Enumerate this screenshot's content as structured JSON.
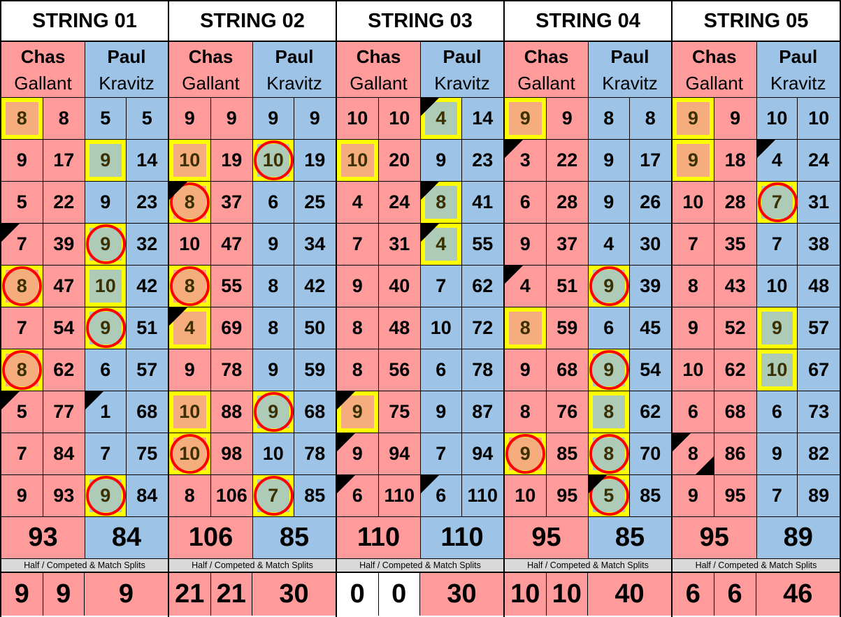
{
  "colors": {
    "chas": "#ff9b9b",
    "paul": "#9dc3e6",
    "highlight": "#ffff00",
    "circle": "#ff0000",
    "chas_fill": "#f6ad7e",
    "paul_fill": "#aecbb8",
    "label_bg": "#d9d9d9"
  },
  "players": {
    "chas": {
      "first": "Chas",
      "last": "Gallant"
    },
    "paul": {
      "first": "Paul",
      "last": "Kravitz"
    }
  },
  "split_label": "Half / Competed & Match Splits",
  "mark_legend": {
    "y": "yellow-highlight",
    "c": "red-circle",
    "t": "black-corner-triangle",
    "b": "bottom-right-triangle"
  },
  "strings": [
    {
      "title": "STRING 01",
      "rows": [
        {
          "c": [
            "8",
            "8"
          ],
          "cm": "y",
          "p": [
            "5",
            "5"
          ],
          "pm": ""
        },
        {
          "c": [
            "9",
            "17"
          ],
          "cm": "",
          "p": [
            "9",
            "14"
          ],
          "pm": "y"
        },
        {
          "c": [
            "5",
            "22"
          ],
          "cm": "",
          "p": [
            "9",
            "23"
          ],
          "pm": ""
        },
        {
          "c": [
            "7",
            "39"
          ],
          "cm": "t",
          "p": [
            "9",
            "32"
          ],
          "pm": "yc"
        },
        {
          "c": [
            "8",
            "47"
          ],
          "cm": "yc",
          "p": [
            "10",
            "42"
          ],
          "pm": "y"
        },
        {
          "c": [
            "7",
            "54"
          ],
          "cm": "",
          "p": [
            "9",
            "51"
          ],
          "pm": "yc"
        },
        {
          "c": [
            "8",
            "62"
          ],
          "cm": "yc",
          "p": [
            "6",
            "57"
          ],
          "pm": ""
        },
        {
          "c": [
            "5",
            "77"
          ],
          "cm": "t",
          "p": [
            "1",
            "68"
          ],
          "pm": "t"
        },
        {
          "c": [
            "7",
            "84"
          ],
          "cm": "",
          "p": [
            "7",
            "75"
          ],
          "pm": ""
        },
        {
          "c": [
            "9",
            "93"
          ],
          "cm": "",
          "p": [
            "9",
            "84"
          ],
          "pm": "yc"
        }
      ],
      "totals": [
        "93",
        "84"
      ],
      "splits": [
        "9",
        "9",
        "9"
      ],
      "splits_white": false
    },
    {
      "title": "STRING 02",
      "rows": [
        {
          "c": [
            "9",
            "9"
          ],
          "cm": "",
          "p": [
            "9",
            "9"
          ],
          "pm": ""
        },
        {
          "c": [
            "10",
            "19"
          ],
          "cm": "y",
          "p": [
            "10",
            "19"
          ],
          "pm": "yc"
        },
        {
          "c": [
            "8",
            "37"
          ],
          "cm": "ytc",
          "p": [
            "6",
            "25"
          ],
          "pm": ""
        },
        {
          "c": [
            "10",
            "47"
          ],
          "cm": "",
          "p": [
            "9",
            "34"
          ],
          "pm": ""
        },
        {
          "c": [
            "8",
            "55"
          ],
          "cm": "yc",
          "p": [
            "8",
            "42"
          ],
          "pm": ""
        },
        {
          "c": [
            "4",
            "69"
          ],
          "cm": "yt",
          "p": [
            "8",
            "50"
          ],
          "pm": ""
        },
        {
          "c": [
            "9",
            "78"
          ],
          "cm": "",
          "p": [
            "9",
            "59"
          ],
          "pm": ""
        },
        {
          "c": [
            "10",
            "88"
          ],
          "cm": "y",
          "p": [
            "9",
            "68"
          ],
          "pm": "yc"
        },
        {
          "c": [
            "10",
            "98"
          ],
          "cm": "yc",
          "p": [
            "10",
            "78"
          ],
          "pm": ""
        },
        {
          "c": [
            "8",
            "106"
          ],
          "cm": "",
          "p": [
            "7",
            "85"
          ],
          "pm": "yc"
        }
      ],
      "totals": [
        "106",
        "85"
      ],
      "splits": [
        "21",
        "21",
        "30"
      ],
      "splits_white": false
    },
    {
      "title": "STRING 03",
      "rows": [
        {
          "c": [
            "10",
            "10"
          ],
          "cm": "",
          "p": [
            "4",
            "14"
          ],
          "pm": "yt"
        },
        {
          "c": [
            "10",
            "20"
          ],
          "cm": "y",
          "p": [
            "9",
            "23"
          ],
          "pm": ""
        },
        {
          "c": [
            "4",
            "24"
          ],
          "cm": "",
          "p": [
            "8",
            "41"
          ],
          "pm": "yt"
        },
        {
          "c": [
            "7",
            "31"
          ],
          "cm": "",
          "p": [
            "4",
            "55"
          ],
          "pm": "yt"
        },
        {
          "c": [
            "9",
            "40"
          ],
          "cm": "",
          "p": [
            "7",
            "62"
          ],
          "pm": ""
        },
        {
          "c": [
            "8",
            "48"
          ],
          "cm": "",
          "p": [
            "10",
            "72"
          ],
          "pm": ""
        },
        {
          "c": [
            "8",
            "56"
          ],
          "cm": "",
          "p": [
            "6",
            "78"
          ],
          "pm": ""
        },
        {
          "c": [
            "9",
            "75"
          ],
          "cm": "yt",
          "p": [
            "9",
            "87"
          ],
          "pm": ""
        },
        {
          "c": [
            "9",
            "94"
          ],
          "cm": "t",
          "p": [
            "7",
            "94"
          ],
          "pm": ""
        },
        {
          "c": [
            "6",
            "110"
          ],
          "cm": "t",
          "p": [
            "6",
            "110"
          ],
          "pm": "t"
        }
      ],
      "totals": [
        "110",
        "110"
      ],
      "splits": [
        "0",
        "0",
        "30"
      ],
      "splits_white": true
    },
    {
      "title": "STRING 04",
      "rows": [
        {
          "c": [
            "9",
            "9"
          ],
          "cm": "y",
          "p": [
            "8",
            "8"
          ],
          "pm": ""
        },
        {
          "c": [
            "3",
            "22"
          ],
          "cm": "t",
          "p": [
            "9",
            "17"
          ],
          "pm": ""
        },
        {
          "c": [
            "6",
            "28"
          ],
          "cm": "",
          "p": [
            "9",
            "26"
          ],
          "pm": ""
        },
        {
          "c": [
            "9",
            "37"
          ],
          "cm": "",
          "p": [
            "4",
            "30"
          ],
          "pm": ""
        },
        {
          "c": [
            "4",
            "51"
          ],
          "cm": "t",
          "p": [
            "9",
            "39"
          ],
          "pm": "yc"
        },
        {
          "c": [
            "8",
            "59"
          ],
          "cm": "y",
          "p": [
            "6",
            "45"
          ],
          "pm": ""
        },
        {
          "c": [
            "9",
            "68"
          ],
          "cm": "",
          "p": [
            "9",
            "54"
          ],
          "pm": "yc"
        },
        {
          "c": [
            "8",
            "76"
          ],
          "cm": "",
          "p": [
            "8",
            "62"
          ],
          "pm": "y"
        },
        {
          "c": [
            "9",
            "85"
          ],
          "cm": "yc",
          "p": [
            "8",
            "70"
          ],
          "pm": "yc"
        },
        {
          "c": [
            "10",
            "95"
          ],
          "cm": "",
          "p": [
            "5",
            "85"
          ],
          "pm": "ytc"
        }
      ],
      "totals": [
        "95",
        "85"
      ],
      "splits": [
        "10",
        "10",
        "40"
      ],
      "splits_white": false
    },
    {
      "title": "STRING 05",
      "rows": [
        {
          "c": [
            "9",
            "9"
          ],
          "cm": "y",
          "p": [
            "10",
            "10"
          ],
          "pm": ""
        },
        {
          "c": [
            "9",
            "18"
          ],
          "cm": "y",
          "p": [
            "4",
            "24"
          ],
          "pm": "t"
        },
        {
          "c": [
            "10",
            "28"
          ],
          "cm": "",
          "p": [
            "7",
            "31"
          ],
          "pm": "yc"
        },
        {
          "c": [
            "7",
            "35"
          ],
          "cm": "",
          "p": [
            "7",
            "38"
          ],
          "pm": ""
        },
        {
          "c": [
            "8",
            "43"
          ],
          "cm": "",
          "p": [
            "10",
            "48"
          ],
          "pm": ""
        },
        {
          "c": [
            "9",
            "52"
          ],
          "cm": "",
          "p": [
            "9",
            "57"
          ],
          "pm": "y"
        },
        {
          "c": [
            "10",
            "62"
          ],
          "cm": "",
          "p": [
            "10",
            "67"
          ],
          "pm": "y"
        },
        {
          "c": [
            "6",
            "68"
          ],
          "cm": "",
          "p": [
            "6",
            "73"
          ],
          "pm": ""
        },
        {
          "c": [
            "8",
            "86"
          ],
          "cm": "tb",
          "p": [
            "9",
            "82"
          ],
          "pm": ""
        },
        {
          "c": [
            "9",
            "95"
          ],
          "cm": "",
          "p": [
            "7",
            "89"
          ],
          "pm": ""
        }
      ],
      "totals": [
        "95",
        "89"
      ],
      "splits": [
        "6",
        "6",
        "46"
      ],
      "splits_white": false
    }
  ]
}
